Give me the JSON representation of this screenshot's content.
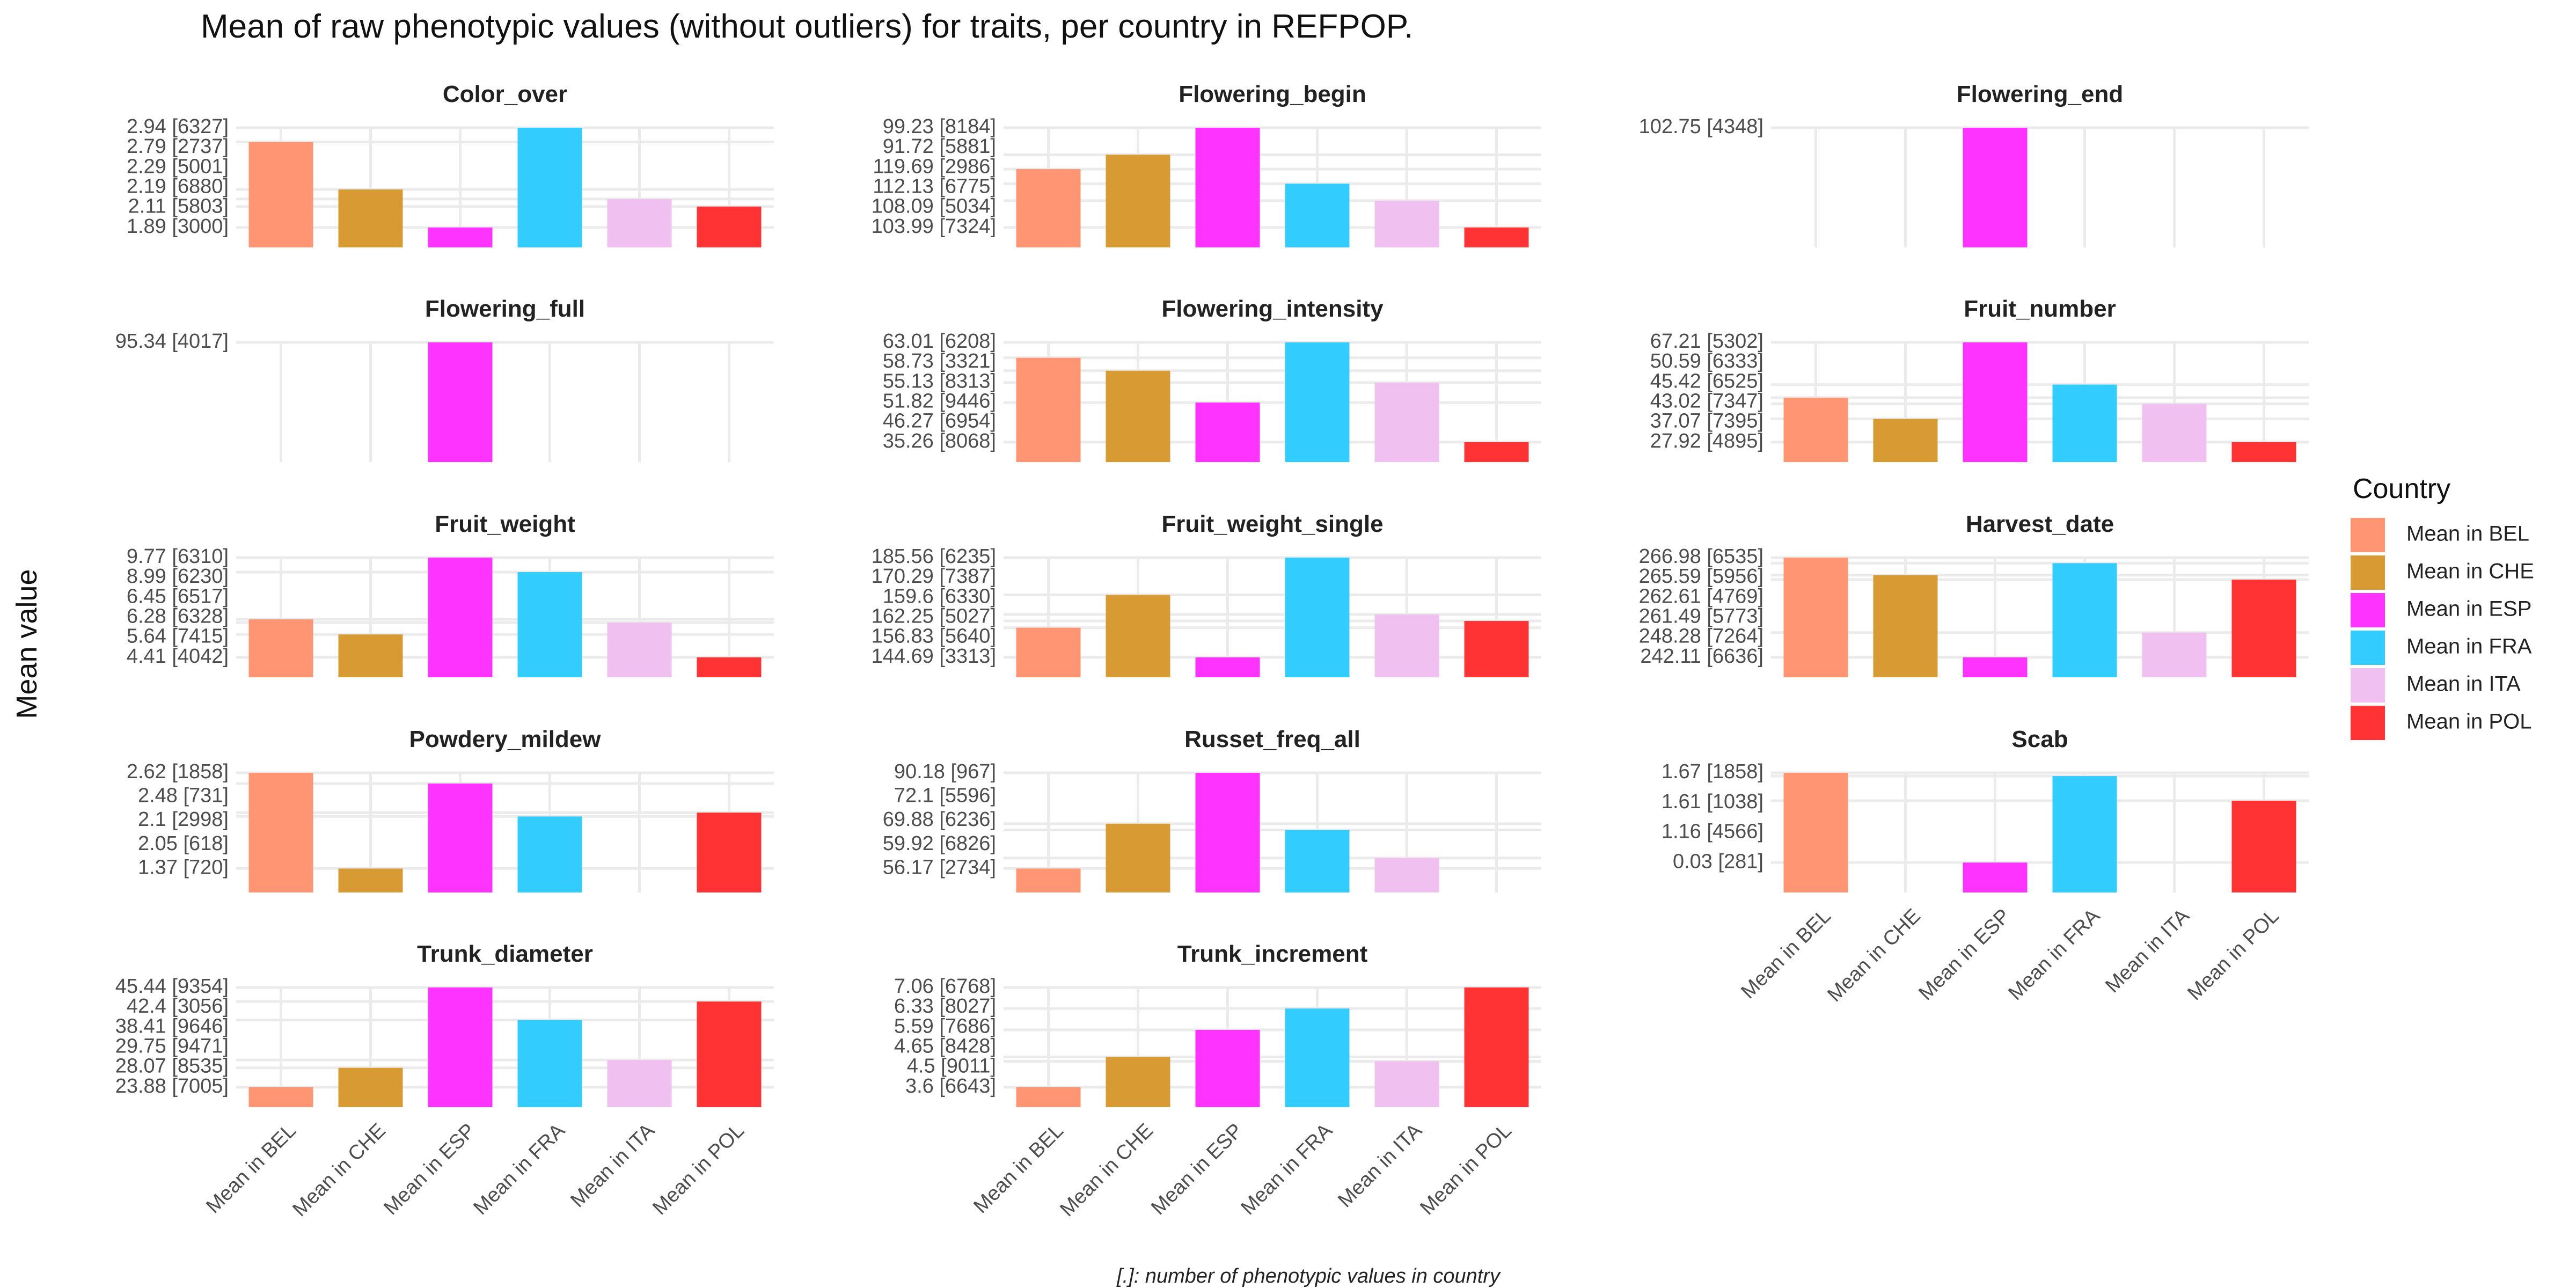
{
  "title": "Mean of raw phenotypic values (without outliers) for traits, per country in REFPOP.",
  "ylabel": "Mean value",
  "caption": "[.]: number of phenotypic values in country",
  "legend": {
    "title": "Country",
    "placement": "right",
    "items": [
      {
        "label": "Mean in BEL",
        "color": "#FF9572"
      },
      {
        "label": "Mean in CHE",
        "color": "#D89A33"
      },
      {
        "label": "Mean in ESP",
        "color": "#FF33FF"
      },
      {
        "label": "Mean in FRA",
        "color": "#33CCFF"
      },
      {
        "label": "Mean in ITA",
        "color": "#F0C0F0"
      },
      {
        "label": "Mean in POL",
        "color": "#FF3333"
      }
    ]
  },
  "chart_data": {
    "type": "bar",
    "facet_layout": "3 columns, 5 rows",
    "grid": true,
    "categories": [
      "Mean in BEL",
      "Mean in CHE",
      "Mean in ESP",
      "Mean in FRA",
      "Mean in ITA",
      "Mean in POL"
    ],
    "panels": [
      {
        "title": "Color_over",
        "values": [
          2.79,
          2.29,
          1.89,
          2.94,
          2.19,
          2.11
        ],
        "tick_labels": [
          "2.94 [6327]",
          "2.79 [2737]",
          "2.29 [5001]",
          "2.19 [6880]",
          "2.11 [5803]",
          "1.89 [3000]"
        ]
      },
      {
        "title": "Flowering_begin",
        "values": [
          108.09,
          112.13,
          119.69,
          103.99,
          99.23,
          91.72
        ],
        "tick_labels": [
          "99.23 [8184]",
          "91.72 [5881]",
          "119.69 [2986]",
          "112.13 [6775]",
          "108.09 [5034]",
          "103.99 [7324]"
        ]
      },
      {
        "title": "Flowering_end",
        "values": [
          null,
          null,
          102.75,
          null,
          null,
          null
        ],
        "tick_labels": [
          "102.75 [4348]"
        ]
      },
      {
        "title": "Flowering_full",
        "values": [
          null,
          null,
          95.34,
          null,
          null,
          null
        ],
        "tick_labels": [
          "95.34 [4017]"
        ]
      },
      {
        "title": "Flowering_intensity",
        "values": [
          58.73,
          55.13,
          46.27,
          63.01,
          51.82,
          35.26
        ],
        "tick_labels": [
          "63.01 [6208]",
          "58.73 [3321]",
          "55.13 [8313]",
          "51.82 [9446]",
          "46.27 [6954]",
          "35.26 [8068]"
        ]
      },
      {
        "title": "Fruit_number",
        "values": [
          45.42,
          37.07,
          67.21,
          50.59,
          43.02,
          27.92
        ],
        "tick_labels": [
          "67.21 [5302]",
          "50.59 [6333]",
          "45.42 [6525]",
          "43.02 [7347]",
          "37.07 [7395]",
          "27.92 [4895]"
        ]
      },
      {
        "title": "Fruit_weight",
        "values": [
          6.45,
          5.64,
          9.77,
          8.99,
          6.28,
          4.41
        ],
        "tick_labels": [
          "9.77 [6310]",
          "8.99 [6230]",
          "6.45 [6517]",
          "6.28 [6328]",
          "5.64 [7415]",
          "4.41 [4042]"
        ]
      },
      {
        "title": "Fruit_weight_single",
        "values": [
          156.83,
          170.29,
          144.69,
          185.56,
          162.25,
          159.6
        ],
        "tick_labels": [
          "185.56 [6235]",
          "170.29 [7387]",
          "159.6 [6330]",
          "162.25 [5027]",
          "156.83 [5640]",
          "144.69 [3313]"
        ]
      },
      {
        "title": "Harvest_date",
        "values": [
          266.98,
          262.61,
          242.11,
          265.59,
          248.28,
          261.49
        ],
        "tick_labels": [
          "266.98 [6535]",
          "265.59 [5956]",
          "262.61 [4769]",
          "261.49 [5773]",
          "248.28 [7264]",
          "242.11 [6636]"
        ]
      },
      {
        "title": "Powdery_mildew",
        "values": [
          2.62,
          1.37,
          2.48,
          2.05,
          null,
          2.1
        ],
        "tick_labels": [
          "2.62 [1858]",
          "2.48 [731]",
          "2.1 [2998]",
          "2.05 [618]",
          "1.37 [720]"
        ]
      },
      {
        "title": "Russet_freq_all",
        "values": [
          56.17,
          72.1,
          90.18,
          69.88,
          59.92,
          null
        ],
        "tick_labels": [
          "90.18 [967]",
          "72.1 [5596]",
          "69.88 [6236]",
          "59.92 [6826]",
          "56.17 [2734]"
        ]
      },
      {
        "title": "Scab",
        "values": [
          1.67,
          null,
          0.03,
          1.61,
          null,
          1.16
        ],
        "tick_labels": [
          "1.67 [1858]",
          "1.61 [1038]",
          "1.16 [4566]",
          "0.03 [281]"
        ]
      },
      {
        "title": "Trunk_diameter",
        "values": [
          23.88,
          28.07,
          45.44,
          38.41,
          29.75,
          42.4
        ],
        "tick_labels": [
          "45.44 [9354]",
          "42.4 [3056]",
          "38.41 [9646]",
          "29.75 [9471]",
          "28.07 [8535]",
          "23.88 [7005]"
        ]
      },
      {
        "title": "Trunk_increment",
        "values": [
          3.6,
          4.65,
          5.59,
          6.33,
          4.5,
          7.06
        ],
        "tick_labels": [
          "7.06 [6768]",
          "6.33 [8027]",
          "5.59 [7686]",
          "4.65 [8428]",
          "4.5 [9011]",
          "3.6 [6643]"
        ]
      }
    ]
  }
}
